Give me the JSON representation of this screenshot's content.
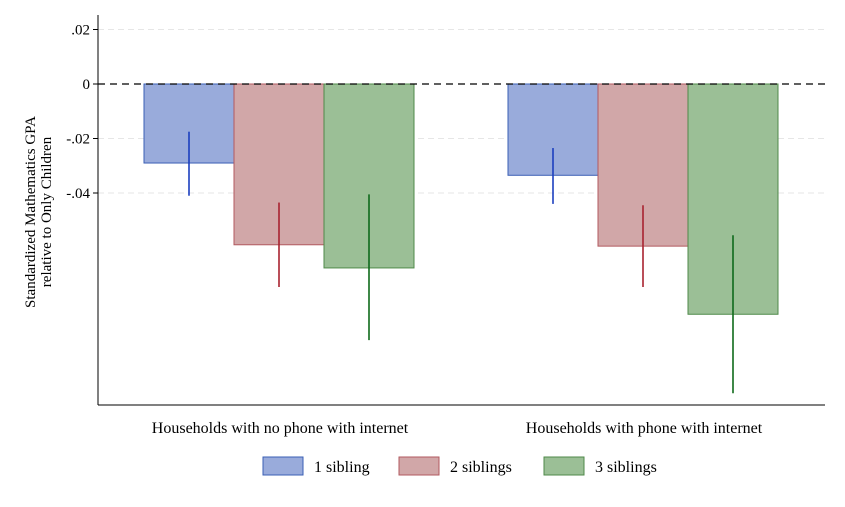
{
  "chart_data": {
    "type": "bar",
    "categories": [
      "Households with no phone with internet",
      "Households with phone with internet"
    ],
    "ylabel_lines": [
      "Standardized Mathematics GPA",
      "relative to Only Children"
    ],
    "yticks": [
      0.02,
      0,
      -0.02,
      -0.04
    ],
    "ytick_labels": [
      ".02",
      "0",
      "-.02",
      "-.04"
    ],
    "ylim": [
      -0.118,
      0.025
    ],
    "reference_line": 0,
    "grid": true,
    "legend_position": "bottom",
    "series": [
      {
        "name": "1 sibling",
        "color": "#99abdb",
        "edge_color": "#3a5fb5",
        "ci_color": "#1c3fbf",
        "values": [
          -0.029,
          -0.0335
        ],
        "ci_low": [
          -0.041,
          -0.044
        ],
        "ci_high": [
          -0.0175,
          -0.0235
        ]
      },
      {
        "name": "2 siblings",
        "color": "#d1a7a8",
        "edge_color": "#b25a5f",
        "ci_color": "#a8232f",
        "values": [
          -0.059,
          -0.0595
        ],
        "ci_low": [
          -0.0745,
          -0.0745
        ],
        "ci_high": [
          -0.0435,
          -0.0445
        ]
      },
      {
        "name": "3 siblings",
        "color": "#9bbf96",
        "edge_color": "#4f8a49",
        "ci_color": "#0f6a1b",
        "values": [
          -0.0675,
          -0.0845
        ],
        "ci_low": [
          -0.094,
          -0.1135
        ],
        "ci_high": [
          -0.0405,
          -0.0555
        ]
      }
    ]
  }
}
